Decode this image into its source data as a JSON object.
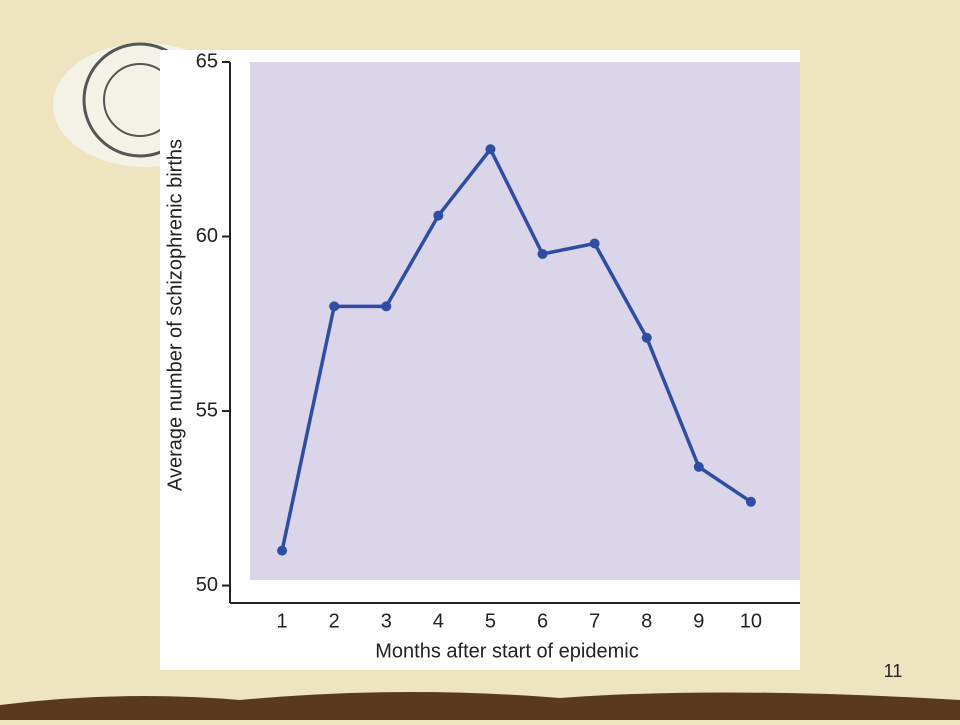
{
  "chart_data": {
    "type": "line",
    "x_label": "Months after start of epidemic",
    "y_label": "Average number of schizophrenic births",
    "x": [
      1,
      2,
      3,
      4,
      5,
      6,
      7,
      8,
      9,
      10
    ],
    "series": [
      {
        "color": "#2d4ea3",
        "values": [
          51.0,
          58.0,
          58.0,
          60.6,
          62.5,
          59.5,
          59.8,
          57.1,
          53.4,
          52.4
        ]
      }
    ],
    "xlim": [
      0,
      11
    ],
    "xticks": [
      1,
      2,
      3,
      4,
      5,
      6,
      7,
      8,
      9,
      10
    ],
    "ylim": [
      49.5,
      65
    ],
    "yticks": [
      50,
      55,
      60,
      65
    ],
    "grid": false
  },
  "slide_number": "11"
}
